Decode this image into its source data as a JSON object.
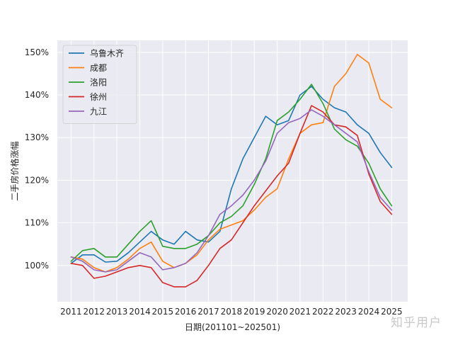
{
  "chart_data": {
    "type": "line",
    "title": "",
    "xlabel": "日期(201101~202501)",
    "ylabel": "二手房价格涨幅",
    "xlim": [
      2010.4,
      2025.7
    ],
    "ylim": [
      91.5,
      152.8
    ],
    "x_ticks": [
      2011,
      2012,
      2013,
      2014,
      2015,
      2016,
      2017,
      2018,
      2019,
      2020,
      2021,
      2022,
      2023,
      2024,
      2025
    ],
    "y_ticks": [
      100,
      110,
      120,
      130,
      140,
      150
    ],
    "y_tick_labels": [
      "100%",
      "110%",
      "120%",
      "130%",
      "140%",
      "150%"
    ],
    "grid": true,
    "legend_position": "top-left",
    "x": [
      2011.0,
      2011.5,
      2012.0,
      2012.5,
      2013.0,
      2013.5,
      2014.0,
      2014.5,
      2015.0,
      2015.5,
      2016.0,
      2016.5,
      2017.0,
      2017.5,
      2018.0,
      2018.5,
      2019.0,
      2019.5,
      2020.0,
      2020.5,
      2021.0,
      2021.5,
      2022.0,
      2022.5,
      2023.0,
      2023.5,
      2024.0,
      2024.5,
      2025.0
    ],
    "series": [
      {
        "name": "乌鲁木齐",
        "color": "#1f77b4",
        "values": [
          100.5,
          102.5,
          102.5,
          100.8,
          101.0,
          103.0,
          105.5,
          108.0,
          106.0,
          105.0,
          108.0,
          106.0,
          105.5,
          108.0,
          118.0,
          125.0,
          130.0,
          135.0,
          133.0,
          134.0,
          140.0,
          142.0,
          139.0,
          137.0,
          136.0,
          133.0,
          131.0,
          126.5,
          123.0
        ]
      },
      {
        "name": "成都",
        "color": "#ff7f0e",
        "values": [
          102.0,
          101.5,
          99.5,
          98.5,
          99.5,
          101.5,
          104.0,
          105.5,
          101.0,
          99.5,
          100.5,
          102.5,
          106.0,
          108.5,
          109.5,
          110.5,
          113.0,
          116.0,
          118.0,
          125.0,
          131.0,
          133.0,
          133.5,
          142.0,
          145.0,
          149.5,
          147.5,
          139.0,
          137.0
        ]
      },
      {
        "name": "洛阳",
        "color": "#2ca02c",
        "values": [
          101.0,
          103.5,
          104.0,
          102.0,
          102.0,
          105.0,
          108.0,
          110.5,
          104.5,
          104.0,
          104.0,
          105.0,
          107.0,
          110.0,
          111.5,
          114.0,
          119.0,
          125.0,
          134.0,
          136.0,
          139.0,
          142.5,
          138.0,
          132.0,
          129.5,
          128.0,
          124.0,
          118.0,
          114.0
        ]
      },
      {
        "name": "徐州",
        "color": "#d62728",
        "values": [
          100.5,
          100.0,
          97.0,
          97.5,
          98.5,
          99.5,
          100.0,
          99.5,
          96.0,
          95.0,
          95.0,
          96.5,
          100.0,
          104.0,
          106.0,
          110.0,
          114.0,
          117.5,
          121.0,
          124.0,
          131.0,
          137.5,
          136.0,
          133.0,
          132.5,
          130.5,
          121.5,
          115.0,
          112.0
        ]
      },
      {
        "name": "九江",
        "color": "#9467bd",
        "values": [
          102.0,
          101.0,
          99.0,
          98.5,
          99.0,
          101.0,
          103.0,
          102.0,
          99.0,
          99.5,
          100.5,
          103.0,
          107.0,
          112.0,
          114.0,
          116.5,
          120.0,
          124.5,
          131.0,
          133.5,
          134.5,
          136.5,
          135.0,
          133.0,
          131.0,
          129.0,
          122.0,
          116.0,
          113.0
        ]
      }
    ]
  },
  "watermark": "知乎用户"
}
